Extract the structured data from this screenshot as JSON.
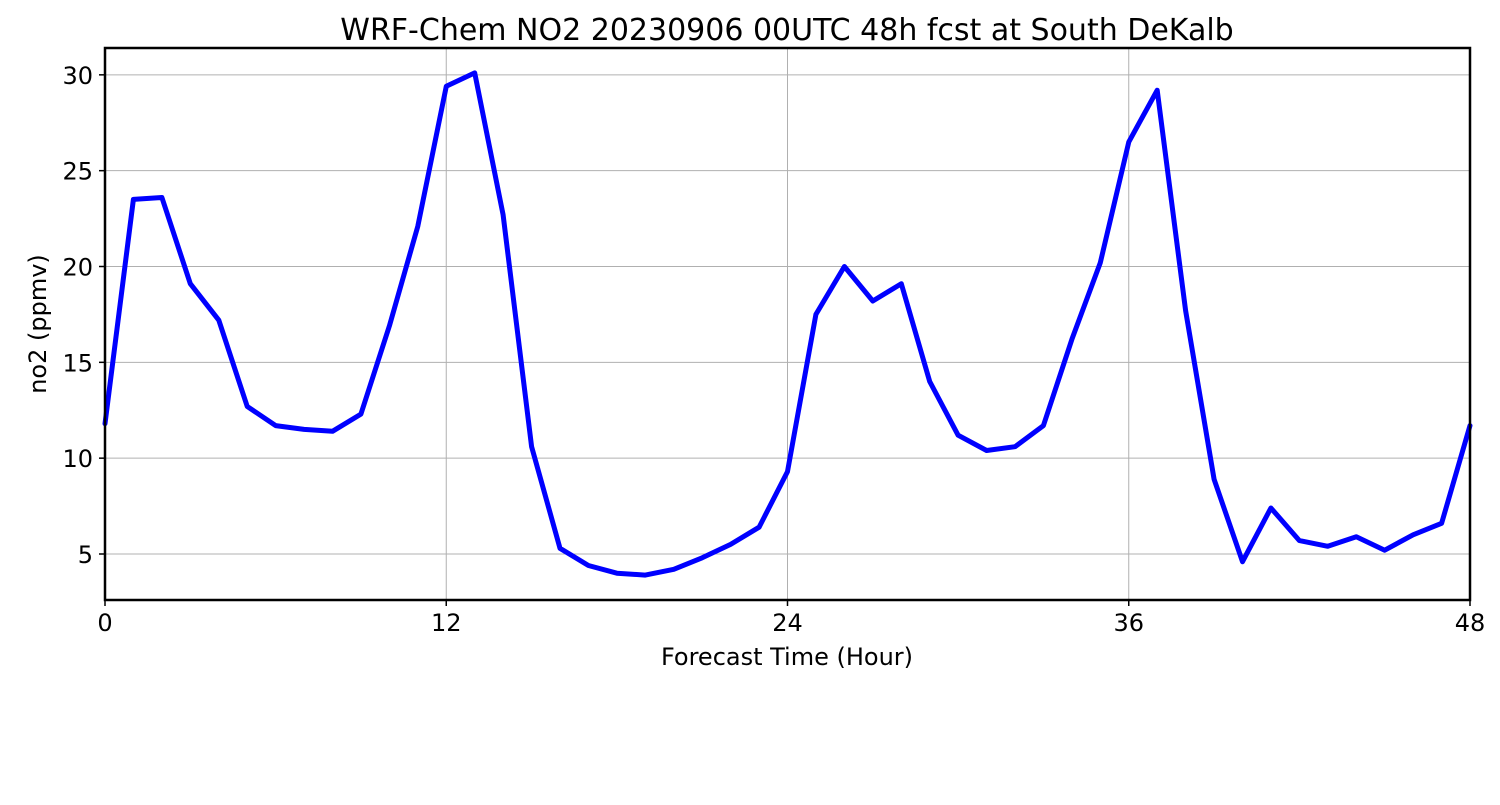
{
  "chart_data": {
    "type": "line",
    "title": "WRF-Chem NO2  20230906 00UTC 48h fcst at South DeKalb",
    "xlabel": "Forecast Time (Hour)",
    "ylabel": "no2  (ppmv)",
    "xlim": [
      0,
      48
    ],
    "ylim": [
      2.6,
      31.4
    ],
    "xticks": [
      0,
      12,
      24,
      36,
      48
    ],
    "yticks": [
      5,
      10,
      15,
      20,
      25,
      30
    ],
    "grid": true,
    "line_color": "#0000ff",
    "series": [
      {
        "x": [
          0,
          1,
          2,
          3,
          4,
          5,
          6,
          7,
          8,
          9,
          10,
          11,
          12,
          13,
          14,
          15,
          16,
          17,
          18,
          19,
          20,
          21,
          22,
          23,
          24,
          25,
          26,
          27,
          28,
          29,
          30,
          31,
          32,
          33,
          34,
          35,
          36,
          37,
          38,
          39,
          40,
          41,
          42,
          43,
          44,
          45,
          46,
          47,
          48
        ],
        "values": [
          11.8,
          23.5,
          23.6,
          19.1,
          17.2,
          12.7,
          11.7,
          11.5,
          11.4,
          12.3,
          16.9,
          22.1,
          29.4,
          30.1,
          22.7,
          10.6,
          5.3,
          4.4,
          4.0,
          3.9,
          4.2,
          4.8,
          5.5,
          6.4,
          9.3,
          17.5,
          20.0,
          18.2,
          19.1,
          14.0,
          11.2,
          10.4,
          10.6,
          11.7,
          16.2,
          20.2,
          26.5,
          29.2,
          17.7,
          8.9,
          4.6,
          7.4,
          5.7,
          5.4,
          5.9,
          5.2,
          6.0,
          6.6,
          11.7
        ]
      }
    ]
  }
}
